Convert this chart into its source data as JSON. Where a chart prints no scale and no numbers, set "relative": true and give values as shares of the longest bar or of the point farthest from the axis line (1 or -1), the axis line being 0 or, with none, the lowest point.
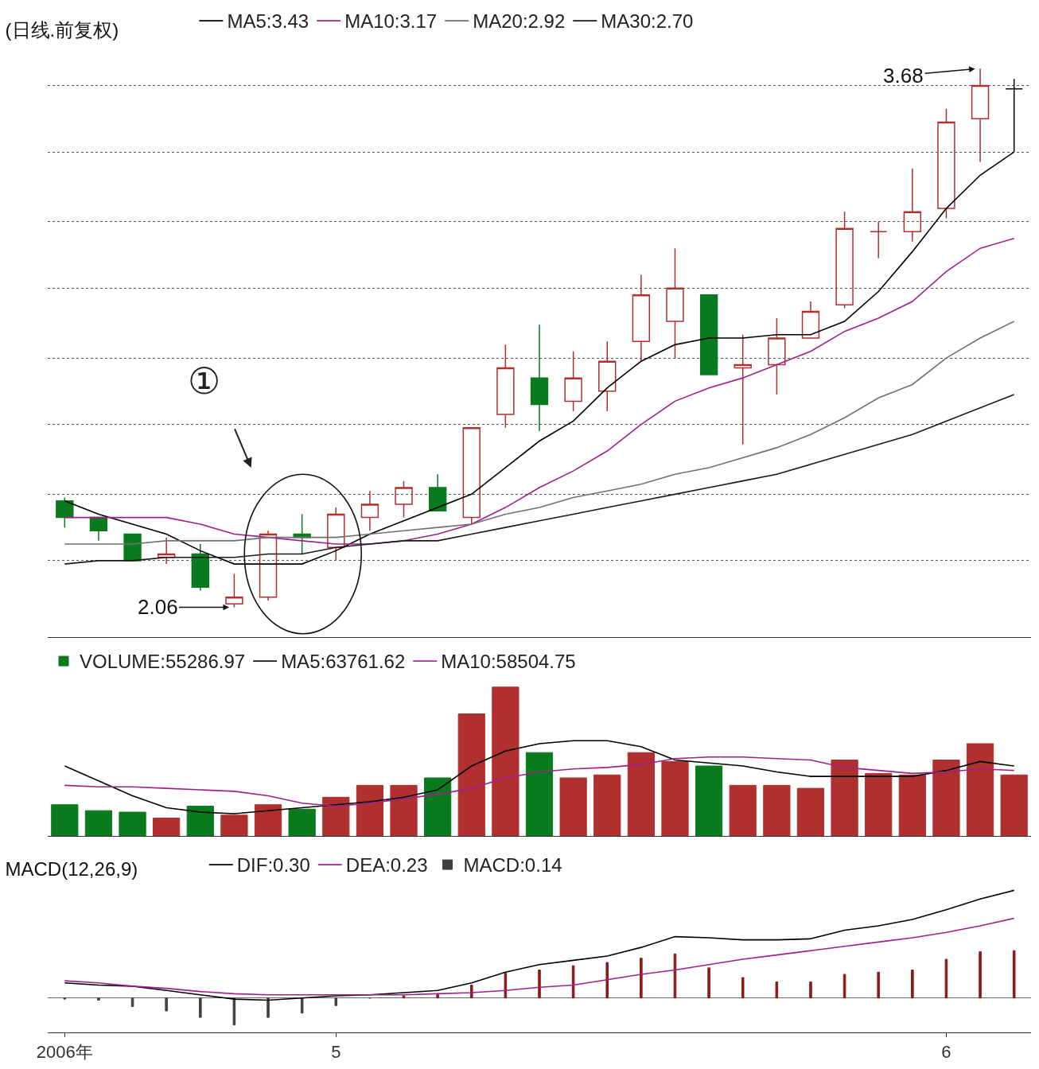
{
  "chart_data": [
    {
      "type": "candlestick",
      "title": "(日线.前复权)",
      "ohlc": [
        [
          2.38,
          2.39,
          2.3,
          2.33
        ],
        [
          2.33,
          2.33,
          2.26,
          2.29
        ],
        [
          2.28,
          2.28,
          2.2,
          2.2
        ],
        [
          2.21,
          2.27,
          2.19,
          2.22
        ],
        [
          2.22,
          2.25,
          2.11,
          2.12
        ],
        [
          2.07,
          2.16,
          2.06,
          2.09
        ],
        [
          2.09,
          2.29,
          2.08,
          2.28
        ],
        [
          2.28,
          2.34,
          2.22,
          2.27
        ],
        [
          2.24,
          2.36,
          2.2,
          2.34
        ],
        [
          2.33,
          2.41,
          2.29,
          2.37
        ],
        [
          2.37,
          2.44,
          2.33,
          2.42
        ],
        [
          2.42,
          2.46,
          2.35,
          2.35
        ],
        [
          2.33,
          2.6,
          2.31,
          2.6
        ],
        [
          2.64,
          2.85,
          2.6,
          2.78
        ],
        [
          2.75,
          2.91,
          2.59,
          2.67
        ],
        [
          2.68,
          2.83,
          2.65,
          2.75
        ],
        [
          2.71,
          2.86,
          2.65,
          2.8
        ],
        [
          2.86,
          3.06,
          2.8,
          3.0
        ],
        [
          2.92,
          3.14,
          2.81,
          3.02
        ],
        [
          3.0,
          3.0,
          2.76,
          2.76
        ],
        [
          2.78,
          2.88,
          2.55,
          2.79
        ],
        [
          2.79,
          2.93,
          2.7,
          2.87
        ],
        [
          2.87,
          2.98,
          2.87,
          2.95
        ],
        [
          2.97,
          3.25,
          2.96,
          3.2
        ],
        [
          3.19,
          3.22,
          3.11,
          3.19
        ],
        [
          3.19,
          3.38,
          3.16,
          3.25
        ],
        [
          3.26,
          3.56,
          3.23,
          3.52
        ],
        [
          3.53,
          3.68,
          3.4,
          3.63
        ],
        [
          3.62,
          3.65,
          3.43,
          3.62
        ]
      ],
      "colors": [
        "#0a7a1e",
        "#0a7a1e",
        "#0a7a1e",
        "#b03030",
        "#0a7a1e",
        "#b03030",
        "#b03030",
        "#0a7a1e",
        "#b03030",
        "#b03030",
        "#b03030",
        "#0a7a1e",
        "#b03030",
        "#b03030",
        "#0a7a1e",
        "#b03030",
        "#b03030",
        "#b03030",
        "#b03030",
        "#0a7a1e",
        "#b03030",
        "#b03030",
        "#b03030",
        "#b03030",
        "#b03030",
        "#b03030",
        "#b03030",
        "#b03030",
        "#000000"
      ],
      "series": [
        {
          "name": "MA5:3.43",
          "type": "line",
          "color": "#000000",
          "values": [
            2.38,
            2.34,
            2.31,
            2.28,
            2.23,
            2.19,
            2.19,
            2.19,
            2.23,
            2.28,
            2.32,
            2.36,
            2.4,
            2.48,
            2.56,
            2.62,
            2.72,
            2.8,
            2.85,
            2.87,
            2.87,
            2.88,
            2.88,
            2.92,
            3.01,
            3.13,
            3.26,
            3.36,
            3.43
          ]
        },
        {
          "name": "MA10:3.17",
          "type": "line",
          "color": "#a0208a",
          "values": [
            2.33,
            2.33,
            2.33,
            2.33,
            2.31,
            2.28,
            2.27,
            2.26,
            2.25,
            2.25,
            2.26,
            2.28,
            2.31,
            2.36,
            2.42,
            2.47,
            2.53,
            2.61,
            2.68,
            2.72,
            2.75,
            2.79,
            2.83,
            2.89,
            2.93,
            2.98,
            3.07,
            3.14,
            3.17
          ]
        },
        {
          "name": "MA20:2.92",
          "type": "line",
          "color": "#707070",
          "values": [
            2.25,
            2.25,
            2.25,
            2.26,
            2.26,
            2.26,
            2.27,
            2.27,
            2.27,
            2.28,
            2.29,
            2.3,
            2.31,
            2.34,
            2.36,
            2.39,
            2.41,
            2.43,
            2.46,
            2.48,
            2.51,
            2.54,
            2.58,
            2.63,
            2.69,
            2.73,
            2.81,
            2.87,
            2.92
          ]
        },
        {
          "name": "MA30:2.70",
          "type": "line",
          "color": "#1a1a1a",
          "values": [
            2.19,
            2.2,
            2.2,
            2.21,
            2.21,
            2.21,
            2.22,
            2.22,
            2.24,
            2.25,
            2.26,
            2.26,
            2.28,
            2.3,
            2.32,
            2.34,
            2.36,
            2.38,
            2.4,
            2.42,
            2.44,
            2.46,
            2.49,
            2.52,
            2.55,
            2.58,
            2.62,
            2.66,
            2.7
          ]
        }
      ],
      "yticks": [
        {
          "value": 2.2,
          "label": null
        },
        {
          "value": 2.4,
          "label": null
        },
        {
          "value": 2.61,
          "label": null
        },
        {
          "value": 2.81,
          "label": null
        },
        {
          "value": 3.02,
          "label": null
        },
        {
          "value": 3.22,
          "label": null
        },
        {
          "value": 3.43,
          "label": null
        },
        {
          "value": 3.63,
          "label": null
        }
      ],
      "grid": "y",
      "legend": "top left",
      "tick_labels": false,
      "annotations": [
        "①",
        "2.06",
        "3.68"
      ]
    },
    {
      "type": "bar",
      "relative": true,
      "series": [
        {
          "name": "VOLUME:55286.97",
          "values": [
            0.21,
            0.17,
            0.16,
            0.12,
            0.2,
            0.14,
            0.21,
            0.18,
            0.26,
            0.34,
            0.34,
            0.39,
            0.82,
            1,
            0.56,
            0.39,
            0.41,
            0.56,
            0.5,
            0.47,
            0.34,
            0.34,
            0.32,
            0.51,
            0.42,
            0.41,
            0.51,
            0.62,
            0.41
          ],
          "colors": [
            "#0a7a1e",
            "#0a7a1e",
            "#0a7a1e",
            "#b03030",
            "#0a7a1e",
            "#b03030",
            "#b03030",
            "#0a7a1e",
            "#b03030",
            "#b03030",
            "#b03030",
            "#0a7a1e",
            "#b03030",
            "#b03030",
            "#0a7a1e",
            "#b03030",
            "#b03030",
            "#b03030",
            "#b03030",
            "#0a7a1e",
            "#b03030",
            "#b03030",
            "#b03030",
            "#b03030",
            "#b03030",
            "#b03030",
            "#b03030",
            "#b03030",
            "#b03030"
          ]
        },
        {
          "name": "MA5:63761.62",
          "type": "line",
          "color": "#000000",
          "values": [
            0.47,
            0.37,
            0.27,
            0.19,
            0.16,
            0.15,
            0.17,
            0.19,
            0.21,
            0.23,
            0.26,
            0.31,
            0.47,
            0.57,
            0.62,
            0.64,
            0.64,
            0.6,
            0.51,
            0.49,
            0.47,
            0.43,
            0.4,
            0.4,
            0.4,
            0.4,
            0.44,
            0.5,
            0.47
          ]
        },
        {
          "name": "MA10:58504.75",
          "type": "line",
          "color": "#a0208a",
          "values": [
            0.34,
            0.33,
            0.33,
            0.32,
            0.31,
            0.3,
            0.27,
            0.22,
            0.2,
            0.22,
            0.25,
            0.28,
            0.32,
            0.39,
            0.43,
            0.45,
            0.46,
            0.48,
            0.52,
            0.53,
            0.53,
            0.52,
            0.51,
            0.46,
            0.44,
            0.42,
            0.43,
            0.45,
            0.44
          ]
        }
      ],
      "legend": "top left",
      "tick_labels": false
    },
    {
      "type": "line",
      "relative": true,
      "title": "MACD(12,26,9)",
      "categories": [
        "2006年",
        null,
        null,
        null,
        null,
        null,
        null,
        null,
        "5",
        null,
        null,
        null,
        null,
        null,
        null,
        null,
        null,
        null,
        null,
        null,
        null,
        null,
        null,
        null,
        null,
        null,
        "6",
        null,
        null
      ],
      "series": [
        {
          "name": "DIF:0.30",
          "color": "#000000",
          "values": [
            0.14,
            0.12,
            0.11,
            0.07,
            0.03,
            -0.01,
            -0.02,
            0,
            0.02,
            0.03,
            0.05,
            0.07,
            0.14,
            0.24,
            0.31,
            0.35,
            0.39,
            0.47,
            0.57,
            0.56,
            0.54,
            0.54,
            0.55,
            0.63,
            0.67,
            0.73,
            0.82,
            0.92,
            1
          ]
        },
        {
          "name": "DEA:0.23",
          "color": "#a0208a",
          "values": [
            0.16,
            0.14,
            0.11,
            0.09,
            0.06,
            0.04,
            0.03,
            0.03,
            0.03,
            0.03,
            0.03,
            0.04,
            0.05,
            0.07,
            0.1,
            0.12,
            0.17,
            0.22,
            0.26,
            0.31,
            0.36,
            0.4,
            0.44,
            0.48,
            0.52,
            0.56,
            0.61,
            0.67,
            0.74
          ]
        },
        {
          "name": "MACD:0.14",
          "type": "bar",
          "values": [
            -0.01,
            -0.02,
            -0.08,
            -0.12,
            -0.18,
            -0.25,
            -0.18,
            -0.14,
            -0.07,
            0,
            0.02,
            0.03,
            0.12,
            0.23,
            0.26,
            0.3,
            0.33,
            0.37,
            0.41,
            0.28,
            0.19,
            0.15,
            0.15,
            0.22,
            0.24,
            0.26,
            0.36,
            0.43,
            0.44
          ],
          "colors": [
            "#404040",
            "#404040",
            "#404040",
            "#404040",
            "#404040",
            "#404040",
            "#404040",
            "#404040",
            "#404040",
            "#8b1a1a",
            "#8b1a1a",
            "#8b1a1a",
            "#8b1a1a",
            "#8b1a1a",
            "#8b1a1a",
            "#8b1a1a",
            "#8b1a1a",
            "#8b1a1a",
            "#8b1a1a",
            "#8b1a1a",
            "#8b1a1a",
            "#8b1a1a",
            "#8b1a1a",
            "#8b1a1a",
            "#8b1a1a",
            "#8b1a1a",
            "#8b1a1a",
            "#8b1a1a",
            "#8b1a1a"
          ]
        }
      ],
      "legend": "top left",
      "tick_labels": "x"
    }
  ]
}
